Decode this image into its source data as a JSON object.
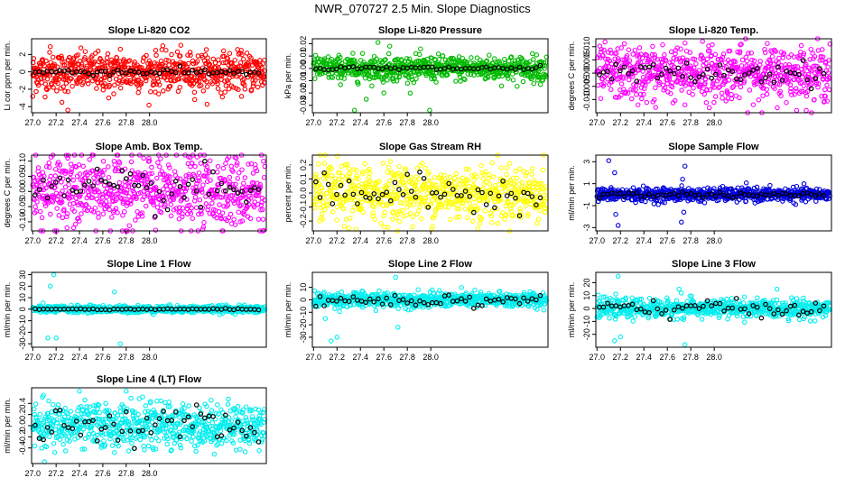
{
  "title": "NWR_070727  2.5 Min. Slope Diagnostics",
  "colors": {
    "black": "#000000"
  },
  "chart_data": [
    {
      "type": "scatter",
      "title": "Slope Li-820 CO2",
      "ylabel": "Li cor ppm per min.",
      "color": "#ff0000",
      "xlim": [
        26.99,
        29.0
      ],
      "ylim": [
        -4.7,
        3.8
      ],
      "xticks": [
        27.0,
        27.2,
        27.4,
        27.6,
        27.8,
        28.0
      ],
      "yticks": [
        -4,
        -2,
        0,
        2
      ],
      "xticklabels": [
        "27.0",
        "27.2",
        "27.4",
        "27.6",
        "27.8",
        "28.0"
      ],
      "yticklabels": [
        "-4",
        "-2",
        "0",
        "2"
      ],
      "spread": 1.1,
      "black_spread": 0.2,
      "outliers": [
        [
          27.3,
          -4.4
        ],
        [
          27.15,
          2.9
        ],
        [
          27.25,
          -3.5
        ],
        [
          27.65,
          -3.0
        ],
        [
          27.75,
          2.6
        ],
        [
          27.0,
          -2.8
        ]
      ]
    },
    {
      "type": "scatter",
      "title": "Slope Li-820 Pressure",
      "ylabel": "kPa per min.",
      "color": "#00bb00",
      "xlim": [
        26.99,
        29.0
      ],
      "ylim": [
        -0.036,
        0.024
      ],
      "xticks": [
        27.0,
        27.2,
        27.4,
        27.6,
        27.8,
        28.0
      ],
      "yticks": [
        -0.03,
        -0.02,
        -0.01,
        0.0,
        0.01,
        0.02
      ],
      "xticklabels": [
        "27.0",
        "27.2",
        "27.4",
        "27.6",
        "27.8",
        "28.0"
      ],
      "yticklabels": [
        "-0.03",
        "-0.02",
        "-0.01",
        "0.00",
        "0.01",
        "0.02"
      ],
      "spread": 0.005,
      "black_spread": 0.001,
      "outliers": [
        [
          27.55,
          0.021
        ],
        [
          27.65,
          0.018
        ],
        [
          27.35,
          -0.034
        ],
        [
          27.99,
          -0.034
        ],
        [
          27.45,
          -0.025
        ],
        [
          27.6,
          -0.02
        ]
      ]
    },
    {
      "type": "scatter",
      "title": "Slope Li-820 Temp.",
      "ylabel": "degrees C per min.",
      "color": "#ff00ff",
      "xlim": [
        26.99,
        29.0
      ],
      "ylim": [
        -0.015,
        0.013
      ],
      "xticks": [
        27.0,
        27.2,
        27.4,
        27.6,
        27.8,
        28.0
      ],
      "yticks": [
        -0.01,
        -0.005,
        0.0,
        0.005,
        0.01
      ],
      "xticklabels": [
        "27.0",
        "27.2",
        "27.4",
        "27.6",
        "27.8",
        "28.0"
      ],
      "yticklabels": [
        "-0.010",
        "-0.005",
        "0.000",
        "0.005",
        "0.010"
      ],
      "spread": 0.005,
      "black_spread": 0.002,
      "outliers": [
        [
          27.9,
          0.012
        ],
        [
          27.5,
          -0.013
        ],
        [
          27.75,
          -0.012
        ],
        [
          27.35,
          -0.012
        ]
      ]
    },
    {
      "type": "scatter",
      "title": "Slope Amb. Box Temp.",
      "ylabel": "degrees C per min.",
      "color": "#ff00ff",
      "xlim": [
        26.99,
        29.0
      ],
      "ylim": [
        -0.13,
        0.12
      ],
      "xticks": [
        27.0,
        27.2,
        27.4,
        27.6,
        27.8,
        28.0
      ],
      "yticks": [
        -0.1,
        -0.05,
        0.0,
        0.05,
        0.1
      ],
      "xticklabels": [
        "27.0",
        "27.2",
        "27.4",
        "27.6",
        "27.8",
        "28.0"
      ],
      "yticklabels": [
        "-0.10",
        "-0.05",
        "0.00",
        "0.05",
        "0.10"
      ],
      "spread": 0.06,
      "black_spread": 0.035,
      "outliers": [
        [
          27.35,
          -0.12
        ],
        [
          27.3,
          0.11
        ],
        [
          27.95,
          0.11
        ]
      ]
    },
    {
      "type": "scatter",
      "title": "Slope Gas Stream RH",
      "ylabel": "percent per min.",
      "color": "#ffff00",
      "xlim": [
        26.99,
        29.0
      ],
      "ylim": [
        -0.27,
        0.27
      ],
      "xticks": [
        27.0,
        27.2,
        27.4,
        27.6,
        27.8,
        28.0
      ],
      "yticks": [
        -0.2,
        -0.1,
        0.0,
        0.1,
        0.2
      ],
      "xticklabels": [
        "27.0",
        "27.2",
        "27.4",
        "27.6",
        "27.8",
        "28.0"
      ],
      "yticklabels": [
        "-0.2",
        "-0.1",
        "0.0",
        "0.1",
        "0.2"
      ],
      "spread": 0.1,
      "black_spread": 0.06,
      "outliers": [
        [
          27.1,
          0.27
        ],
        [
          27.3,
          -0.25
        ],
        [
          27.05,
          -0.2
        ]
      ]
    },
    {
      "type": "scatter",
      "title": "Slope Sample Flow",
      "ylabel": "ml/min per min.",
      "color": "#0000dd",
      "xlim": [
        26.99,
        29.0
      ],
      "ylim": [
        -3.3,
        3.6
      ],
      "xticks": [
        27.0,
        27.2,
        27.4,
        27.6,
        27.8,
        28.0
      ],
      "yticks": [
        -3,
        -1,
        1,
        3
      ],
      "xticklabels": [
        "27.0",
        "27.2",
        "27.4",
        "27.6",
        "27.8",
        "28.0"
      ],
      "yticklabels": [
        "-3",
        "-1",
        "1",
        "3"
      ],
      "spread": 0.3,
      "black_spread": 0.12,
      "outliers": [
        [
          27.1,
          3.1
        ],
        [
          27.15,
          2.0
        ],
        [
          27.18,
          -2.8
        ],
        [
          27.16,
          -1.8
        ],
        [
          27.75,
          2.6
        ],
        [
          27.72,
          -2.5
        ],
        [
          27.74,
          -1.6
        ],
        [
          27.73,
          1.4
        ]
      ]
    },
    {
      "type": "scatter",
      "title": "Slope Line 1 Flow",
      "ylabel": "ml/min per min.",
      "color": "#00eeee",
      "xlim": [
        26.99,
        29.0
      ],
      "ylim": [
        -33,
        32
      ],
      "xticks": [
        27.0,
        27.2,
        27.4,
        27.6,
        27.8,
        28.0
      ],
      "yticks": [
        -30,
        -20,
        -10,
        0,
        10,
        20,
        30
      ],
      "xticklabels": [
        "27.0",
        "27.2",
        "27.4",
        "27.6",
        "27.8",
        "28.0"
      ],
      "yticklabels": [
        "-30",
        "-20",
        "-10",
        "0",
        "10",
        "20",
        "30"
      ],
      "spread": 1.5,
      "black_spread": 0.3,
      "outliers": [
        [
          27.15,
          20
        ],
        [
          27.18,
          30
        ],
        [
          27.13,
          -25
        ],
        [
          27.2,
          -25
        ],
        [
          27.7,
          15
        ],
        [
          27.75,
          -30
        ]
      ]
    },
    {
      "type": "scatter",
      "title": "Slope Line 2 Flow",
      "ylabel": "ml/min per min.",
      "color": "#00eeee",
      "xlim": [
        26.99,
        29.0
      ],
      "ylim": [
        -38,
        22
      ],
      "xticks": [
        27.0,
        27.2,
        27.4,
        27.6,
        27.8,
        28.0
      ],
      "yticks": [
        -30,
        -20,
        -10,
        0,
        10
      ],
      "xticklabels": [
        "27.0",
        "27.2",
        "27.4",
        "27.6",
        "27.8",
        "28.0"
      ],
      "yticklabels": [
        "-30",
        "-20",
        "-10",
        "0",
        "10"
      ],
      "spread": 3,
      "black_spread": 3,
      "outliers": [
        [
          27.15,
          -33
        ],
        [
          27.2,
          -30
        ],
        [
          27.7,
          18
        ],
        [
          27.72,
          -22
        ],
        [
          27.1,
          -15
        ]
      ]
    },
    {
      "type": "scatter",
      "title": "Slope Line 3 Flow",
      "ylabel": "ml/min per min.",
      "color": "#00eeee",
      "xlim": [
        26.99,
        29.0
      ],
      "ylim": [
        -30,
        28
      ],
      "xticks": [
        27.0,
        27.2,
        27.4,
        27.6,
        27.8,
        28.0
      ],
      "yticks": [
        -20,
        -10,
        0,
        10,
        20
      ],
      "xticklabels": [
        "27.0",
        "27.2",
        "27.4",
        "27.6",
        "27.8",
        "28.0"
      ],
      "yticklabels": [
        "-20",
        "-10",
        "0",
        "10",
        "20"
      ],
      "spread": 3.5,
      "black_spread": 3,
      "outliers": [
        [
          27.18,
          25
        ],
        [
          27.15,
          -25
        ],
        [
          27.2,
          -22
        ],
        [
          27.7,
          15
        ],
        [
          27.75,
          -28
        ],
        [
          27.72,
          12
        ]
      ]
    },
    {
      "type": "scatter",
      "title": "Slope Line 4 (LT) Flow",
      "ylabel": "ml/min per min.",
      "color": "#00eeee",
      "xlim": [
        26.99,
        29.0
      ],
      "ylim": [
        -0.68,
        0.68
      ],
      "xticks": [
        27.0,
        27.2,
        27.4,
        27.6,
        27.8,
        28.0
      ],
      "yticks": [
        -0.4,
        -0.2,
        0.0,
        0.2,
        0.4
      ],
      "xticklabels": [
        "27.0",
        "27.2",
        "27.4",
        "27.6",
        "27.8",
        "28.0"
      ],
      "yticklabels": [
        "-0.4",
        "-0.2",
        "0.0",
        "0.2",
        "0.4"
      ],
      "spread": 0.2,
      "black_spread": 0.15,
      "outliers": [
        [
          27.4,
          0.62
        ],
        [
          27.8,
          0.62
        ],
        [
          27.1,
          -0.65
        ]
      ]
    }
  ]
}
